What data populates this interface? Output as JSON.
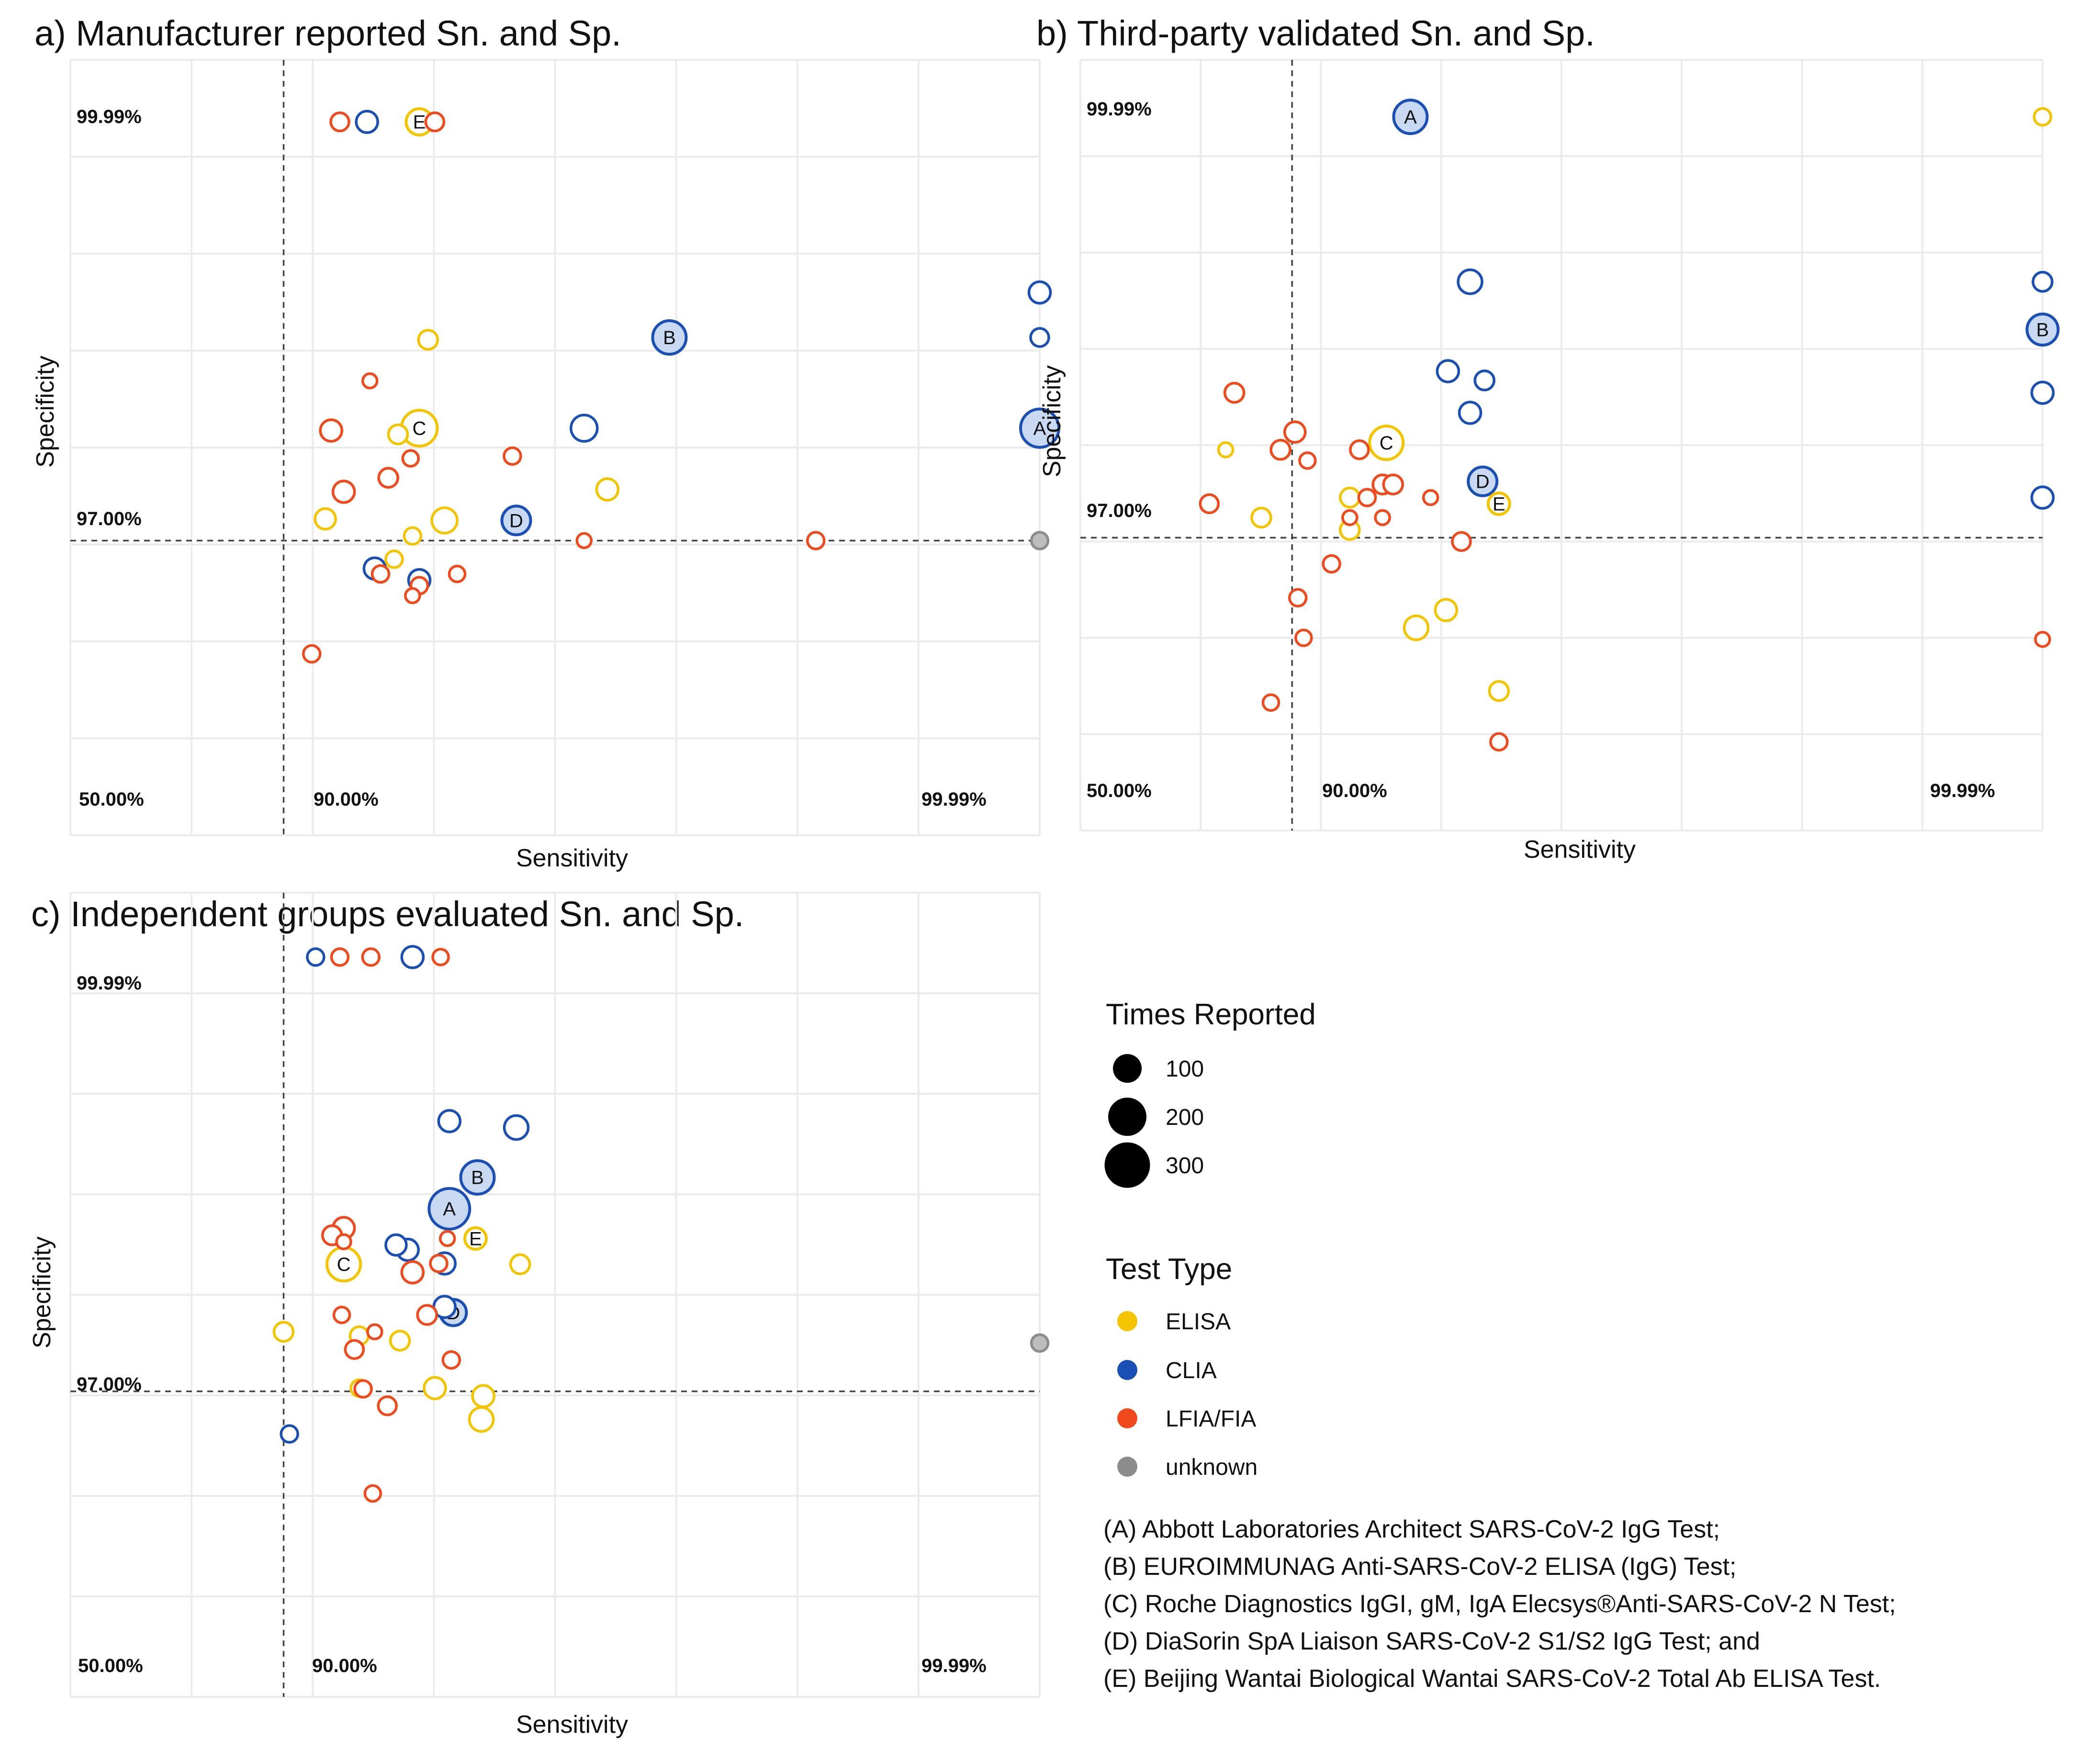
{
  "colors": {
    "ELISA": "#F5C400",
    "CLIA": "#1A4FB5",
    "LFIA/FIA": "#F04A1C",
    "unknown": "#8C8C8C",
    "grid": "#EBEBEB",
    "highlight_fill": "#C9D9F2"
  },
  "chart_data": [
    {
      "type": "scatter",
      "title": "a) Manufacturer reported Sn. and Sp.",
      "xlabel": "Sensitivity",
      "ylabel": "Specificity",
      "x_ticks": [
        "50.00%",
        "90.00%",
        "99.99%"
      ],
      "y_ticks": [
        "99.99%",
        "97.00%",
        "50.00%"
      ],
      "x_reference": "90.00%",
      "y_reference": "97.00%",
      "axis_scale": "nonlinear; positions expressed in percent of axis span",
      "points": [
        {
          "sn": 27.8,
          "sp": 92.0,
          "type": "LFIA/FIA",
          "size": 38
        },
        {
          "sn": 30.6,
          "sp": 92.0,
          "type": "CLIA",
          "size": 45
        },
        {
          "sn": 36.0,
          "sp": 92.0,
          "type": "ELISA",
          "size": 55,
          "label": "E"
        },
        {
          "sn": 37.6,
          "sp": 92.0,
          "type": "LFIA/FIA",
          "size": 38
        },
        {
          "sn": 100.0,
          "sp": 70.0,
          "type": "CLIA",
          "size": 45
        },
        {
          "sn": 100.0,
          "sp": 64.2,
          "type": "CLIA",
          "size": 38
        },
        {
          "sn": 61.8,
          "sp": 64.2,
          "type": "CLIA",
          "size": 70,
          "label": "B"
        },
        {
          "sn": 100.0,
          "sp": 52.5,
          "type": "CLIA",
          "size": 80,
          "label": "A"
        },
        {
          "sn": 36.9,
          "sp": 63.9,
          "type": "ELISA",
          "size": 40
        },
        {
          "sn": 30.9,
          "sp": 58.6,
          "type": "LFIA/FIA",
          "size": 30
        },
        {
          "sn": 36.0,
          "sp": 52.5,
          "type": "ELISA",
          "size": 75,
          "label": "C"
        },
        {
          "sn": 26.9,
          "sp": 52.2,
          "type": "LFIA/FIA",
          "size": 45
        },
        {
          "sn": 33.8,
          "sp": 51.7,
          "type": "ELISA",
          "size": 40
        },
        {
          "sn": 53.0,
          "sp": 52.5,
          "type": "CLIA",
          "size": 55
        },
        {
          "sn": 45.6,
          "sp": 48.9,
          "type": "LFIA/FIA",
          "size": 35
        },
        {
          "sn": 35.1,
          "sp": 48.6,
          "type": "LFIA/FIA",
          "size": 33
        },
        {
          "sn": 32.8,
          "sp": 46.1,
          "type": "LFIA/FIA",
          "size": 40
        },
        {
          "sn": 55.4,
          "sp": 44.6,
          "type": "ELISA",
          "size": 45
        },
        {
          "sn": 28.2,
          "sp": 44.3,
          "type": "LFIA/FIA",
          "size": 45
        },
        {
          "sn": 26.3,
          "sp": 40.8,
          "type": "ELISA",
          "size": 43
        },
        {
          "sn": 38.6,
          "sp": 40.6,
          "type": "ELISA",
          "size": 53
        },
        {
          "sn": 46.0,
          "sp": 40.6,
          "type": "CLIA",
          "size": 60,
          "label": "D"
        },
        {
          "sn": 35.3,
          "sp": 38.6,
          "type": "ELISA",
          "size": 35
        },
        {
          "sn": 33.4,
          "sp": 35.6,
          "type": "ELISA",
          "size": 35
        },
        {
          "sn": 53.0,
          "sp": 38.0,
          "type": "LFIA/FIA",
          "size": 30
        },
        {
          "sn": 76.9,
          "sp": 38.0,
          "type": "LFIA/FIA",
          "size": 35
        },
        {
          "sn": 100.0,
          "sp": 38.0,
          "type": "unknown",
          "size": 35
        },
        {
          "sn": 31.4,
          "sp": 34.4,
          "type": "CLIA",
          "size": 45
        },
        {
          "sn": 32.0,
          "sp": 33.7,
          "type": "LFIA/FIA",
          "size": 35
        },
        {
          "sn": 36.0,
          "sp": 32.9,
          "type": "CLIA",
          "size": 45
        },
        {
          "sn": 36.0,
          "sp": 32.2,
          "type": "LFIA/FIA",
          "size": 35
        },
        {
          "sn": 35.3,
          "sp": 30.9,
          "type": "LFIA/FIA",
          "size": 30
        },
        {
          "sn": 39.9,
          "sp": 33.7,
          "type": "LFIA/FIA",
          "size": 33
        },
        {
          "sn": 24.9,
          "sp": 23.4,
          "type": "LFIA/FIA",
          "size": 35
        }
      ]
    },
    {
      "type": "scatter",
      "title": "b) Third-party validated Sn. and Sp.",
      "xlabel": "Sensitivity",
      "ylabel": "Specificity",
      "x_ticks": [
        "50.00%",
        "90.00%",
        "99.99%"
      ],
      "y_ticks": [
        "99.99%",
        "97.00%",
        "50.00%"
      ],
      "x_reference": "90.00%",
      "y_reference": "97.00%",
      "axis_scale": "nonlinear; positions expressed in percent of axis span",
      "points": [
        {
          "sn": 34.3,
          "sp": 92.6,
          "type": "CLIA",
          "size": 70,
          "label": "A"
        },
        {
          "sn": 100.0,
          "sp": 92.6,
          "type": "ELISA",
          "size": 35
        },
        {
          "sn": 40.5,
          "sp": 71.2,
          "type": "CLIA",
          "size": 50
        },
        {
          "sn": 100.0,
          "sp": 71.2,
          "type": "CLIA",
          "size": 40
        },
        {
          "sn": 100.0,
          "sp": 65.0,
          "type": "CLIA",
          "size": 65,
          "label": "B"
        },
        {
          "sn": 38.2,
          "sp": 59.6,
          "type": "CLIA",
          "size": 45
        },
        {
          "sn": 42.0,
          "sp": 58.4,
          "type": "CLIA",
          "size": 40
        },
        {
          "sn": 16.0,
          "sp": 56.8,
          "type": "LFIA/FIA",
          "size": 40
        },
        {
          "sn": 100.0,
          "sp": 56.8,
          "type": "CLIA",
          "size": 45
        },
        {
          "sn": 40.5,
          "sp": 54.2,
          "type": "CLIA",
          "size": 45
        },
        {
          "sn": 22.3,
          "sp": 51.7,
          "type": "LFIA/FIA",
          "size": 43
        },
        {
          "sn": 31.8,
          "sp": 50.3,
          "type": "ELISA",
          "size": 70,
          "label": "C"
        },
        {
          "sn": 15.1,
          "sp": 49.4,
          "type": "ELISA",
          "size": 30
        },
        {
          "sn": 20.8,
          "sp": 49.4,
          "type": "LFIA/FIA",
          "size": 40
        },
        {
          "sn": 29.0,
          "sp": 49.4,
          "type": "LFIA/FIA",
          "size": 38
        },
        {
          "sn": 23.6,
          "sp": 48.0,
          "type": "LFIA/FIA",
          "size": 33
        },
        {
          "sn": 41.8,
          "sp": 45.3,
          "type": "CLIA",
          "size": 60,
          "label": "D"
        },
        {
          "sn": 31.4,
          "sp": 44.9,
          "type": "LFIA/FIA",
          "size": 40
        },
        {
          "sn": 32.5,
          "sp": 44.9,
          "type": "LFIA/FIA",
          "size": 40
        },
        {
          "sn": 28.0,
          "sp": 43.2,
          "type": "ELISA",
          "size": 40
        },
        {
          "sn": 29.8,
          "sp": 43.2,
          "type": "LFIA/FIA",
          "size": 35
        },
        {
          "sn": 36.4,
          "sp": 43.2,
          "type": "LFIA/FIA",
          "size": 30
        },
        {
          "sn": 13.4,
          "sp": 42.4,
          "type": "LFIA/FIA",
          "size": 38
        },
        {
          "sn": 43.5,
          "sp": 42.4,
          "type": "ELISA",
          "size": 45,
          "label": "E"
        },
        {
          "sn": 100.0,
          "sp": 43.2,
          "type": "CLIA",
          "size": 45
        },
        {
          "sn": 18.8,
          "sp": 40.6,
          "type": "ELISA",
          "size": 40
        },
        {
          "sn": 28.0,
          "sp": 40.6,
          "type": "LFIA/FIA",
          "size": 30
        },
        {
          "sn": 31.4,
          "sp": 40.6,
          "type": "LFIA/FIA",
          "size": 30
        },
        {
          "sn": 28.0,
          "sp": 39.0,
          "type": "ELISA",
          "size": 40
        },
        {
          "sn": 39.6,
          "sp": 37.5,
          "type": "LFIA/FIA",
          "size": 38
        },
        {
          "sn": 26.1,
          "sp": 34.6,
          "type": "LFIA/FIA",
          "size": 35
        },
        {
          "sn": 22.6,
          "sp": 30.2,
          "type": "LFIA/FIA",
          "size": 35
        },
        {
          "sn": 38.0,
          "sp": 28.6,
          "type": "ELISA",
          "size": 45
        },
        {
          "sn": 34.9,
          "sp": 26.3,
          "type": "ELISA",
          "size": 50
        },
        {
          "sn": 23.2,
          "sp": 25.0,
          "type": "LFIA/FIA",
          "size": 33
        },
        {
          "sn": 100.0,
          "sp": 24.8,
          "type": "LFIA/FIA",
          "size": 30
        },
        {
          "sn": 43.5,
          "sp": 18.1,
          "type": "ELISA",
          "size": 40
        },
        {
          "sn": 19.8,
          "sp": 16.6,
          "type": "LFIA/FIA",
          "size": 33
        },
        {
          "sn": 43.5,
          "sp": 11.5,
          "type": "LFIA/FIA",
          "size": 35
        }
      ]
    },
    {
      "type": "scatter",
      "title": "c) Independent groups evaluated Sn. and Sp.",
      "xlabel": "Sensitivity",
      "ylabel": "Specificity",
      "x_ticks": [
        "50.00%",
        "90.00%",
        "99.99%"
      ],
      "y_ticks": [
        "99.99%",
        "97.00%",
        "50.00%"
      ],
      "x_reference": "90.00%",
      "y_reference": "97.00%",
      "axis_scale": "nonlinear; positions expressed in percent of axis span",
      "points": [
        {
          "sn": 25.3,
          "sp": 92.0,
          "type": "CLIA",
          "size": 35
        },
        {
          "sn": 27.8,
          "sp": 92.0,
          "type": "LFIA/FIA",
          "size": 35
        },
        {
          "sn": 31.0,
          "sp": 92.0,
          "type": "LFIA/FIA",
          "size": 35
        },
        {
          "sn": 35.3,
          "sp": 92.0,
          "type": "CLIA",
          "size": 45
        },
        {
          "sn": 38.2,
          "sp": 92.0,
          "type": "LFIA/FIA",
          "size": 33
        },
        {
          "sn": 39.1,
          "sp": 71.6,
          "type": "CLIA",
          "size": 45
        },
        {
          "sn": 46.0,
          "sp": 70.8,
          "type": "CLIA",
          "size": 50
        },
        {
          "sn": 42.0,
          "sp": 64.6,
          "type": "CLIA",
          "size": 70,
          "label": "B"
        },
        {
          "sn": 39.1,
          "sp": 60.7,
          "type": "CLIA",
          "size": 85,
          "label": "A"
        },
        {
          "sn": 41.8,
          "sp": 57.0,
          "type": "ELISA",
          "size": 45,
          "label": "E"
        },
        {
          "sn": 38.9,
          "sp": 57.0,
          "type": "LFIA/FIA",
          "size": 30
        },
        {
          "sn": 27.0,
          "sp": 57.4,
          "type": "LFIA/FIA",
          "size": 40
        },
        {
          "sn": 28.2,
          "sp": 58.3,
          "type": "LFIA/FIA",
          "size": 45
        },
        {
          "sn": 28.2,
          "sp": 56.6,
          "type": "LFIA/FIA",
          "size": 30
        },
        {
          "sn": 33.6,
          "sp": 56.2,
          "type": "CLIA",
          "size": 43
        },
        {
          "sn": 34.8,
          "sp": 55.6,
          "type": "CLIA",
          "size": 45
        },
        {
          "sn": 28.2,
          "sp": 53.8,
          "type": "ELISA",
          "size": 70,
          "label": "C"
        },
        {
          "sn": 38.6,
          "sp": 53.9,
          "type": "CLIA",
          "size": 45
        },
        {
          "sn": 38.0,
          "sp": 53.9,
          "type": "LFIA/FIA",
          "size": 35
        },
        {
          "sn": 35.3,
          "sp": 52.8,
          "type": "LFIA/FIA",
          "size": 45
        },
        {
          "sn": 46.4,
          "sp": 53.8,
          "type": "ELISA",
          "size": 40
        },
        {
          "sn": 38.6,
          "sp": 48.5,
          "type": "CLIA",
          "size": 45
        },
        {
          "sn": 39.5,
          "sp": 47.8,
          "type": "CLIA",
          "size": 55,
          "label": "D"
        },
        {
          "sn": 36.8,
          "sp": 47.5,
          "type": "LFIA/FIA",
          "size": 40
        },
        {
          "sn": 28.0,
          "sp": 47.5,
          "type": "LFIA/FIA",
          "size": 33
        },
        {
          "sn": 22.0,
          "sp": 45.4,
          "type": "ELISA",
          "size": 40
        },
        {
          "sn": 29.8,
          "sp": 44.9,
          "type": "ELISA",
          "size": 38
        },
        {
          "sn": 31.4,
          "sp": 45.4,
          "type": "LFIA/FIA",
          "size": 30
        },
        {
          "sn": 34.0,
          "sp": 44.3,
          "type": "ELISA",
          "size": 40
        },
        {
          "sn": 29.3,
          "sp": 43.2,
          "type": "LFIA/FIA",
          "size": 38
        },
        {
          "sn": 100.0,
          "sp": 44.0,
          "type": "unknown",
          "size": 35
        },
        {
          "sn": 39.3,
          "sp": 41.9,
          "type": "LFIA/FIA",
          "size": 35
        },
        {
          "sn": 29.8,
          "sp": 38.4,
          "type": "ELISA",
          "size": 35
        },
        {
          "sn": 30.2,
          "sp": 38.3,
          "type": "LFIA/FIA",
          "size": 35
        },
        {
          "sn": 37.6,
          "sp": 38.4,
          "type": "ELISA",
          "size": 45
        },
        {
          "sn": 42.6,
          "sp": 37.4,
          "type": "ELISA",
          "size": 45
        },
        {
          "sn": 32.7,
          "sp": 36.2,
          "type": "LFIA/FIA",
          "size": 38
        },
        {
          "sn": 42.4,
          "sp": 34.5,
          "type": "ELISA",
          "size": 50
        },
        {
          "sn": 22.6,
          "sp": 32.7,
          "type": "CLIA",
          "size": 35
        },
        {
          "sn": 31.2,
          "sp": 25.3,
          "type": "LFIA/FIA",
          "size": 33
        }
      ]
    }
  ],
  "legend": {
    "size_title": "Times Reported",
    "size_items": [
      {
        "label": "100",
        "size": 60
      },
      {
        "label": "200",
        "size": 80
      },
      {
        "label": "300",
        "size": 95
      }
    ],
    "color_title": "Test Type",
    "color_items": [
      {
        "label": "ELISA",
        "key": "ELISA"
      },
      {
        "label": "CLIA",
        "key": "CLIA"
      },
      {
        "label": "LFIA/FIA",
        "key": "LFIA/FIA"
      },
      {
        "label": "unknown",
        "key": "unknown"
      }
    ],
    "footnotes": [
      "(A) Abbott Laboratories Architect SARS-CoV-2 IgG Test;",
      "(B) EUROIMMUNAG Anti-SARS-CoV-2 ELISA (IgG) Test;",
      "(C) Roche Diagnostics IgGI, gM, IgA Elecsys®Anti-SARS-CoV-2 N Test;",
      "(D) DiaSorin SpA Liaison SARS-CoV-2 S1/S2 IgG Test; and",
      "(E) Beijing Wantai Biological Wantai SARS-CoV-2 Total Ab ELISA Test."
    ]
  }
}
